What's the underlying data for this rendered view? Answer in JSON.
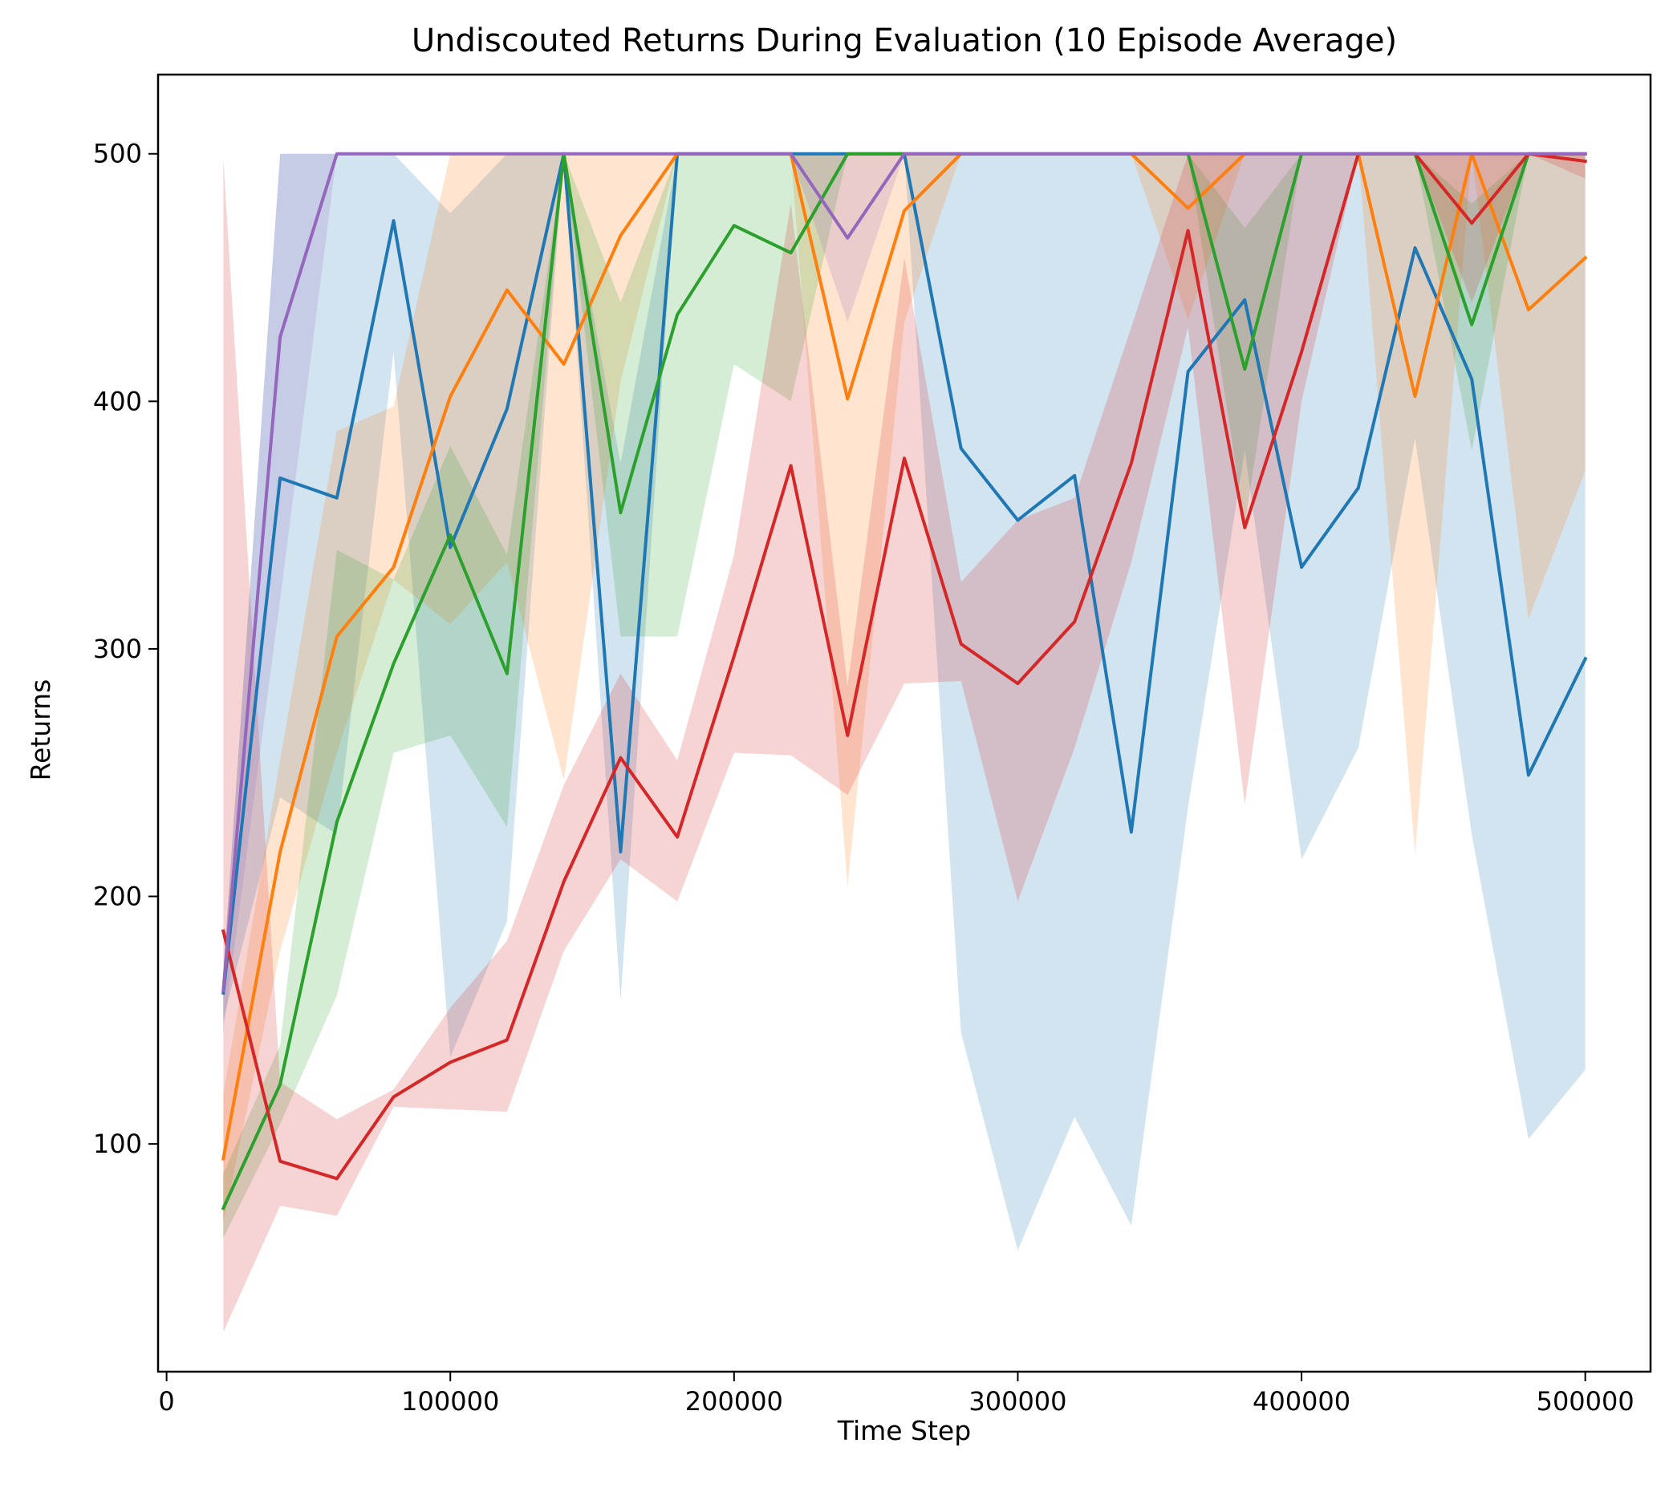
{
  "chart_data": {
    "type": "line",
    "title": "Undiscouted Returns During Evaluation (10 Episode Average)",
    "xlabel": "Time Step",
    "ylabel": "Returns",
    "xlim": [
      -3000,
      523000
    ],
    "ylim": [
      8,
      532
    ],
    "xticks": [
      0,
      100000,
      200000,
      300000,
      400000,
      500000
    ],
    "xtick_labels": [
      "0",
      "100000",
      "200000",
      "300000",
      "400000",
      "500000"
    ],
    "yticks": [
      100,
      200,
      300,
      400,
      500
    ],
    "ytick_labels": [
      "100",
      "200",
      "300",
      "400",
      "500"
    ],
    "grid": false,
    "legend": "none",
    "x": [
      20000,
      40000,
      60000,
      80000,
      100000,
      120000,
      140000,
      160000,
      180000,
      200000,
      220000,
      240000,
      260000,
      280000,
      300000,
      320000,
      340000,
      360000,
      380000,
      400000,
      420000,
      440000,
      460000,
      480000,
      500000
    ],
    "series": [
      {
        "color": "#1f77b4",
        "values": [
          161,
          369,
          361,
          473,
          341,
          397,
          500,
          218,
          500,
          500,
          500,
          500,
          500,
          381,
          352,
          370,
          226,
          412,
          441,
          333,
          365,
          462,
          409,
          249,
          296
        ],
        "band_upper": [
          170,
          500,
          500,
          500,
          476,
          500,
          500,
          375,
          500,
          500,
          500,
          500,
          500,
          500,
          500,
          500,
          500,
          500,
          500,
          500,
          500,
          500,
          500,
          500,
          500
        ],
        "band_lower": [
          150,
          240,
          225,
          420,
          135,
          190,
          500,
          158,
          500,
          500,
          500,
          500,
          500,
          145,
          57,
          111,
          67,
          236,
          380,
          215,
          260,
          385,
          225,
          102,
          130
        ]
      },
      {
        "color": "#ff7f0e",
        "values": [
          94,
          218,
          305,
          333,
          402,
          445,
          415,
          467,
          500,
          500,
          500,
          401,
          477,
          500,
          500,
          500,
          500,
          478,
          500,
          500,
          500,
          402,
          500,
          437,
          458
        ],
        "band_upper": [
          120,
          255,
          388,
          398,
          500,
          500,
          500,
          500,
          500,
          500,
          500,
          500,
          500,
          500,
          500,
          500,
          500,
          500,
          500,
          500,
          500,
          500,
          500,
          500,
          500
        ],
        "band_lower": [
          68,
          178,
          258,
          328,
          310,
          335,
          247,
          408,
          500,
          500,
          500,
          204,
          432,
          500,
          500,
          500,
          500,
          433,
          500,
          500,
          500,
          217,
          500,
          312,
          372
        ]
      },
      {
        "color": "#2ca02c",
        "values": [
          74,
          124,
          230,
          294,
          346,
          290,
          500,
          355,
          435,
          471,
          460,
          500,
          500,
          500,
          500,
          500,
          500,
          500,
          413,
          500,
          500,
          500,
          431,
          500,
          500
        ],
        "band_upper": [
          88,
          140,
          340,
          328,
          382,
          338,
          500,
          440,
          500,
          500,
          500,
          500,
          500,
          500,
          500,
          500,
          500,
          500,
          470,
          500,
          500,
          500,
          480,
          500,
          500
        ],
        "band_lower": [
          62,
          108,
          160,
          258,
          265,
          228,
          500,
          305,
          305,
          415,
          400,
          500,
          500,
          500,
          500,
          500,
          500,
          500,
          350,
          500,
          500,
          500,
          380,
          500,
          500
        ]
      },
      {
        "color": "#d62728",
        "values": [
          186,
          93,
          86,
          119,
          133,
          142,
          206,
          256,
          224,
          297,
          374,
          265,
          377,
          302,
          286,
          311,
          375,
          469,
          349,
          420,
          500,
          500,
          472,
          500,
          497
        ],
        "band_upper": [
          498,
          125,
          110,
          122,
          155,
          182,
          245,
          290,
          255,
          338,
          480,
          285,
          458,
          327,
          352,
          361,
          430,
          500,
          500,
          500,
          500,
          500,
          500,
          500,
          500
        ],
        "band_lower": [
          24,
          75,
          71,
          115,
          114,
          113,
          178,
          215,
          198,
          258,
          257,
          241,
          286,
          287,
          198,
          260,
          335,
          430,
          237,
          400,
          500,
          500,
          440,
          500,
          490
        ]
      },
      {
        "color": "#9467bd",
        "values": [
          162,
          426,
          500,
          500,
          500,
          500,
          500,
          500,
          500,
          500,
          500,
          466,
          500,
          500,
          500,
          500,
          500,
          500,
          500,
          500,
          500,
          500,
          500,
          500,
          500
        ],
        "band_upper": [
          170,
          500,
          500,
          500,
          500,
          500,
          500,
          500,
          500,
          500,
          500,
          500,
          500,
          500,
          500,
          500,
          500,
          500,
          500,
          500,
          500,
          500,
          500,
          500,
          500
        ],
        "band_lower": [
          145,
          320,
          500,
          500,
          500,
          500,
          500,
          500,
          500,
          500,
          500,
          432,
          500,
          500,
          500,
          500,
          500,
          500,
          500,
          500,
          500,
          500,
          500,
          500,
          500
        ]
      }
    ]
  }
}
